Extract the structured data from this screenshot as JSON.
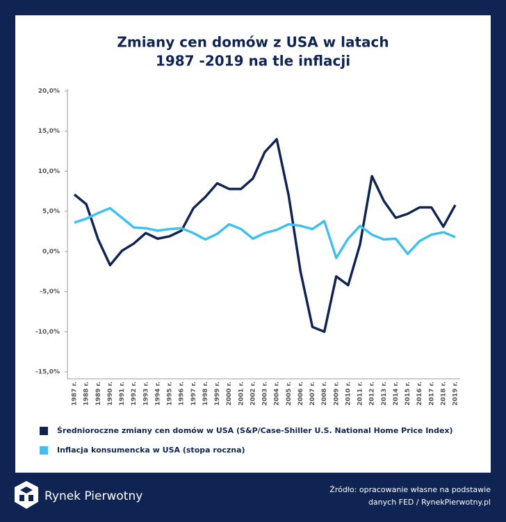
{
  "chart_data": {
    "type": "line",
    "title": [
      "Zmiany cen domów z USA w latach",
      "1987 -2019 na tle inflacji"
    ],
    "categories": [
      "1987 r.",
      "1988 r.",
      "1989 r.",
      "1990 r.",
      "1991 r.",
      "1992 r.",
      "1993 r.",
      "1994 r.",
      "1995 r.",
      "1996 r.",
      "1997 r.",
      "1998 r.",
      "1999 r.",
      "2000 r.",
      "2001 r.",
      "2002 r.",
      "2003 r.",
      "2004 r.",
      "2005 r.",
      "2006 r.",
      "2007 r.",
      "2008 r.",
      "2009 r.",
      "2010 r.",
      "2011 r.",
      "2012 r.",
      "2013 r.",
      "2014 r.",
      "2015 r.",
      "2016 r.",
      "2017 r.",
      "2018 r.",
      "2019 r."
    ],
    "series": [
      {
        "name": "Średnioroczne zmiany cen domów w USA (S&P/Case-Shiller U.S. National Home Price Index)",
        "color": "#0f2452",
        "values": [
          7.1,
          5.9,
          1.5,
          -1.7,
          0.1,
          1.0,
          2.3,
          1.6,
          1.9,
          2.6,
          5.4,
          6.8,
          8.5,
          7.8,
          7.8,
          9.1,
          12.4,
          14.0,
          7.0,
          -2.5,
          -9.4,
          -10.0,
          -3.1,
          -4.2,
          0.9,
          9.4,
          6.3,
          4.2,
          4.7,
          5.5,
          5.5,
          3.1,
          5.8
        ]
      },
      {
        "name": "Inflacja konsumencka w USA (stopa roczna)",
        "color": "#3fc0ee",
        "values": [
          3.6,
          4.1,
          4.8,
          5.4,
          4.2,
          3.0,
          2.9,
          2.6,
          2.8,
          2.9,
          2.3,
          1.5,
          2.2,
          3.4,
          2.8,
          1.6,
          2.3,
          2.7,
          3.4,
          3.2,
          2.8,
          3.8,
          -0.8,
          1.6,
          3.2,
          2.1,
          1.5,
          1.6,
          -0.3,
          1.3,
          2.1,
          2.4,
          1.8
        ]
      }
    ],
    "ylim": [
      -15,
      20
    ],
    "yticks": [
      {
        "value": -15,
        "label": "-15,0%"
      },
      {
        "value": -10,
        "label": "-10,0%"
      },
      {
        "value": -5,
        "label": "-5,0%"
      },
      {
        "value": 0,
        "label": "0,0%"
      },
      {
        "value": 5,
        "label": "5,0%"
      },
      {
        "value": 10,
        "label": "10,0%"
      },
      {
        "value": 15,
        "label": "15,0%"
      },
      {
        "value": 20,
        "label": "20,0%"
      }
    ],
    "grid": false
  },
  "footer": {
    "brand": "Rynek Pierwotny",
    "source": [
      "Źródło: opracowanie własne na podstawie",
      "danych FED / RynekPierwotny.pl"
    ]
  }
}
